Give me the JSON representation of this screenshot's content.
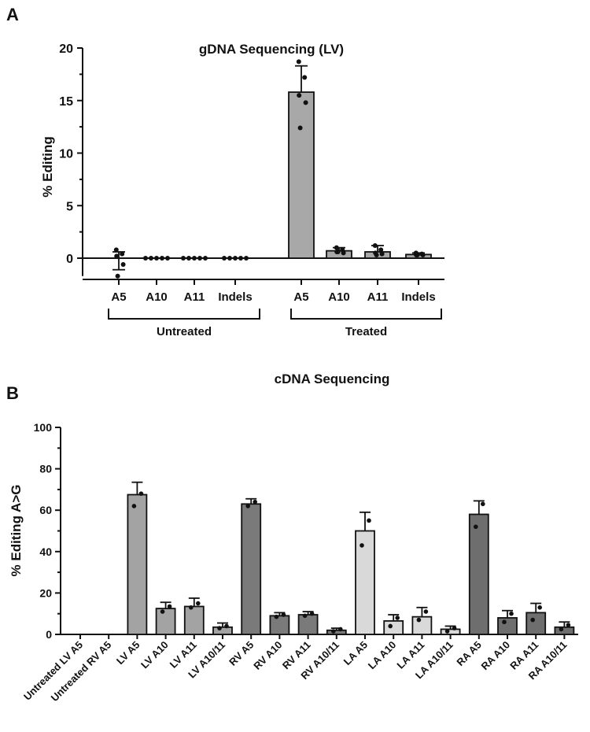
{
  "panels": {
    "a_letter": "A",
    "b_letter": "B"
  },
  "chart_data": [
    {
      "type": "bar",
      "title": "gDNA Sequencing (LV)",
      "ylabel": "% Editing",
      "xlabel": "",
      "ylim": [
        -2,
        20
      ],
      "yticks": [
        0,
        5,
        10,
        15,
        20
      ],
      "groups": [
        "Untreated",
        "Treated"
      ],
      "bars": [
        {
          "label": "A5",
          "group": "Untreated",
          "value": 0,
          "err_low": -1.1,
          "err_high": 0.6,
          "points": [
            0.8,
            0.4,
            0.2,
            -0.6,
            -1.7
          ],
          "color": "#a8a8a8"
        },
        {
          "label": "A10",
          "group": "Untreated",
          "value": 0,
          "err_low": 0,
          "err_high": 0,
          "points": [
            0,
            0,
            0,
            0,
            0
          ],
          "color": "#a8a8a8"
        },
        {
          "label": "A11",
          "group": "Untreated",
          "value": 0,
          "err_low": 0,
          "err_high": 0,
          "points": [
            0,
            0,
            0,
            0,
            0
          ],
          "color": "#a8a8a8"
        },
        {
          "label": "Indels",
          "group": "Untreated",
          "value": 0,
          "err_low": 0,
          "err_high": 0,
          "points": [
            0,
            0,
            0,
            0,
            0
          ],
          "color": "#a8a8a8"
        },
        {
          "label": "A5",
          "group": "Treated",
          "value": 15.8,
          "err_low": 15.8,
          "err_high": 18.3,
          "points": [
            18.7,
            17.2,
            15.5,
            14.8,
            12.4
          ],
          "color": "#a8a8a8"
        },
        {
          "label": "A10",
          "group": "Treated",
          "value": 0.7,
          "err_low": 0.7,
          "err_high": 1.0,
          "points": [
            1.0,
            0.8,
            0.6,
            0.5,
            0.6
          ],
          "color": "#a8a8a8"
        },
        {
          "label": "A11",
          "group": "Treated",
          "value": 0.6,
          "err_low": 0.6,
          "err_high": 1.2,
          "points": [
            1.2,
            0.8,
            0.5,
            0.4,
            0.3
          ],
          "color": "#a8a8a8"
        },
        {
          "label": "Indels",
          "group": "Treated",
          "value": 0.35,
          "err_low": 0.35,
          "err_high": 0.5,
          "points": [
            0.5,
            0.4,
            0.3,
            0.3,
            0.3
          ],
          "color": "#a8a8a8"
        }
      ]
    },
    {
      "type": "bar",
      "title": "cDNA Sequencing",
      "ylabel": "% Editing A>G",
      "xlabel": "",
      "ylim": [
        0,
        100
      ],
      "yticks": [
        0,
        20,
        40,
        60,
        80,
        100
      ],
      "bars": [
        {
          "label": "Untreated LV A5",
          "value": 0,
          "err_high": 0,
          "points": [],
          "color": "#ffffff"
        },
        {
          "label": "Untreated RV A5",
          "value": 0,
          "err_high": 0,
          "points": [],
          "color": "#ffffff"
        },
        {
          "label": "LV A5",
          "value": 67.5,
          "err_high": 73.5,
          "points": [
            62.0,
            68.0
          ],
          "color": "#a3a3a3"
        },
        {
          "label": "LV A10",
          "value": 12.5,
          "err_high": 15.5,
          "points": [
            11.0,
            13.5
          ],
          "color": "#a3a3a3"
        },
        {
          "label": "LV A11",
          "value": 13.5,
          "err_high": 17.5,
          "points": [
            13.0,
            15.0
          ],
          "color": "#a3a3a3"
        },
        {
          "label": "LV A10/11",
          "value": 3.5,
          "err_high": 5.5,
          "points": [
            3.0,
            4.0
          ],
          "color": "#a3a3a3"
        },
        {
          "label": "RV A5",
          "value": 63.0,
          "err_high": 65.5,
          "points": [
            62.0,
            64.0
          ],
          "color": "#7a7a7a"
        },
        {
          "label": "RV A10",
          "value": 9.0,
          "err_high": 10.5,
          "points": [
            8.5,
            9.5
          ],
          "color": "#7a7a7a"
        },
        {
          "label": "RV A11",
          "value": 9.5,
          "err_high": 11.0,
          "points": [
            9.0,
            10.0
          ],
          "color": "#7a7a7a"
        },
        {
          "label": "RV A10/11",
          "value": 2.0,
          "err_high": 3.0,
          "points": [
            1.5,
            2.5
          ],
          "color": "#7a7a7a"
        },
        {
          "label": "LA A5",
          "value": 50.0,
          "err_high": 59.0,
          "points": [
            43.0,
            55.0
          ],
          "color": "#d9d9d9"
        },
        {
          "label": "LA A10",
          "value": 6.5,
          "err_high": 9.5,
          "points": [
            4.0,
            8.0
          ],
          "color": "#d9d9d9"
        },
        {
          "label": "LA A11",
          "value": 8.5,
          "err_high": 13.0,
          "points": [
            7.0,
            11.0
          ],
          "color": "#d9d9d9"
        },
        {
          "label": "LA A10/11",
          "value": 2.5,
          "err_high": 4.0,
          "points": [
            1.5,
            3.0
          ],
          "color": "#d9d9d9"
        },
        {
          "label": "RA A5",
          "value": 58.0,
          "err_high": 64.5,
          "points": [
            52.0,
            63.0
          ],
          "color": "#6e6e6e"
        },
        {
          "label": "RA A10",
          "value": 8.0,
          "err_high": 11.5,
          "points": [
            6.0,
            10.0
          ],
          "color": "#6e6e6e"
        },
        {
          "label": "RA A11",
          "value": 10.5,
          "err_high": 15.0,
          "points": [
            7.0,
            13.0
          ],
          "color": "#6e6e6e"
        },
        {
          "label": "RA A10/11",
          "value": 3.5,
          "err_high": 6.0,
          "points": [
            2.5,
            4.5
          ],
          "color": "#6e6e6e"
        }
      ]
    }
  ]
}
